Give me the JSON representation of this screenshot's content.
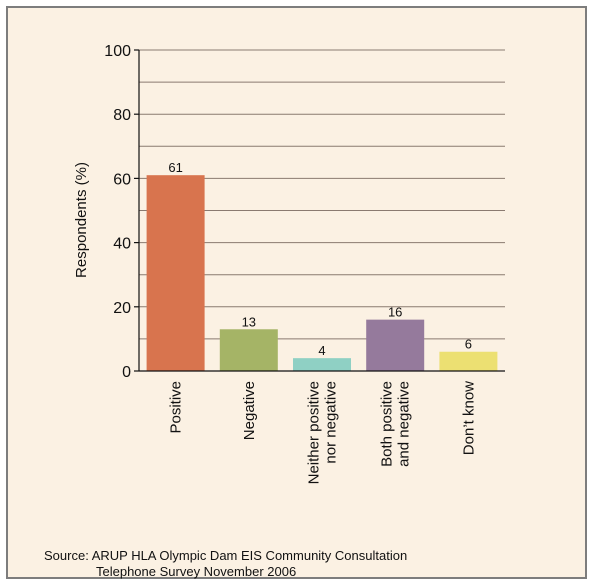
{
  "chart_data": {
    "type": "bar",
    "ylabel": "Respondents (%)",
    "ylim": [
      0,
      100
    ],
    "yticks": [
      0,
      20,
      40,
      60,
      80,
      100
    ],
    "grid": true,
    "categories": [
      [
        "Positive"
      ],
      [
        "Negative"
      ],
      [
        "Neither positive",
        "nor negative"
      ],
      [
        "Both positive",
        "and negative"
      ],
      [
        "Don’t know"
      ]
    ],
    "values": [
      61,
      13,
      4,
      16,
      6
    ],
    "colors": [
      "#d8744e",
      "#a5b466",
      "#8fd0c4",
      "#957a9c",
      "#ece072"
    ]
  },
  "source": {
    "line1": "Source: ARUP HLA Olympic Dam EIS Community Consultation",
    "line2": "Telephone Survey November 2006"
  },
  "style": {
    "background": "#fbf1e3",
    "gridline": "#8a7a70",
    "axis": "#111111"
  }
}
